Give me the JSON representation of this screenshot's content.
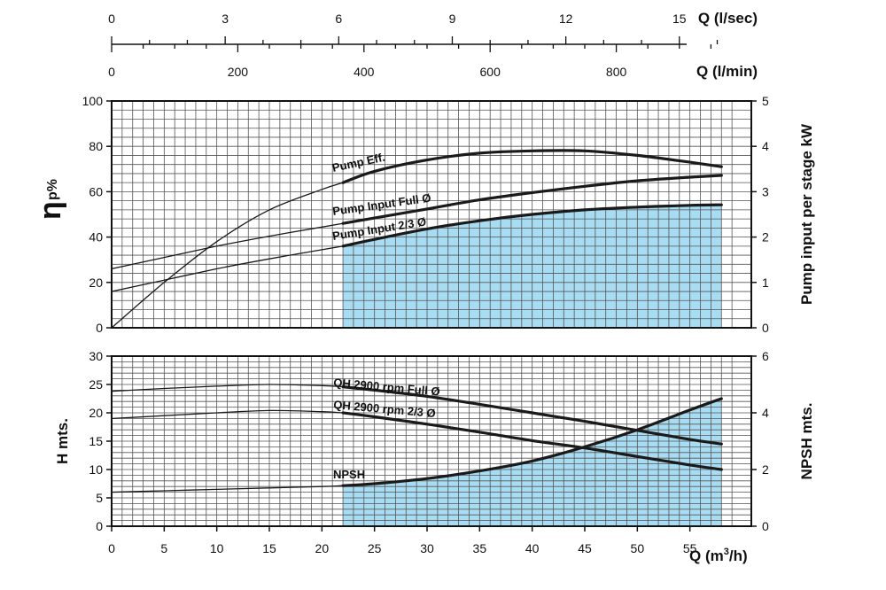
{
  "colors": {
    "fill": "#a8dcf2",
    "grid": "#555555",
    "curve": "#1a1a1a",
    "frame": "#111111"
  },
  "chart_data": [
    {
      "type": "line",
      "panel": "efficiency-and-power",
      "x": [
        0,
        5,
        10,
        15,
        20,
        22,
        25,
        30,
        35,
        40,
        45,
        50,
        55,
        58
      ],
      "xlim": [
        0,
        60
      ],
      "ylim": [
        0,
        100
      ],
      "ylabel": "η",
      "ylabel_sub": "p%",
      "yticks": [
        0,
        20,
        40,
        60,
        80,
        100
      ],
      "y2lim": [
        0,
        5
      ],
      "y2label": "Pump input per stage kW",
      "y2ticks": [
        0,
        1,
        2,
        3,
        4,
        5
      ],
      "grid": true,
      "fill_from_x": 22,
      "series": [
        {
          "name": "Pump Eff.",
          "axis": "left",
          "values": [
            0,
            20,
            38,
            52,
            61,
            64,
            69,
            74,
            77,
            78,
            78,
            76,
            73,
            71
          ]
        },
        {
          "name": "Pump Input Full Ø",
          "axis": "right",
          "values": [
            1.3,
            1.55,
            1.8,
            2.02,
            2.22,
            2.3,
            2.42,
            2.62,
            2.82,
            2.98,
            3.12,
            3.24,
            3.32,
            3.36
          ]
        },
        {
          "name": "Pump Input 2/3 Ø",
          "axis": "right",
          "filled": true,
          "values": [
            0.8,
            1.05,
            1.3,
            1.52,
            1.72,
            1.8,
            1.95,
            2.18,
            2.36,
            2.5,
            2.6,
            2.66,
            2.7,
            2.71
          ]
        }
      ]
    },
    {
      "type": "line",
      "panel": "head-and-npsh",
      "x": [
        0,
        5,
        10,
        15,
        20,
        22,
        25,
        30,
        35,
        40,
        45,
        50,
        55,
        58
      ],
      "xlim": [
        0,
        60
      ],
      "xlabel": "Q (m",
      "xlabel_sup": "3",
      "xlabel_end": "/h)",
      "xticks": [
        0,
        5,
        10,
        15,
        20,
        25,
        30,
        35,
        40,
        45,
        50,
        55
      ],
      "ylim": [
        0,
        30
      ],
      "ylabel": "H mts.",
      "yticks": [
        0,
        5,
        10,
        15,
        20,
        25,
        30
      ],
      "y2lim": [
        0,
        6
      ],
      "y2label": "NPSH mts.",
      "y2ticks": [
        0,
        2,
        4,
        6
      ],
      "grid": true,
      "fill_from_x": 22,
      "series": [
        {
          "name": "QH 2900 rpm Full Ø",
          "axis": "left",
          "values": [
            23.8,
            24.3,
            24.7,
            25.0,
            24.8,
            24.6,
            24.0,
            22.9,
            21.5,
            20.0,
            18.5,
            16.9,
            15.3,
            14.5
          ]
        },
        {
          "name": "QH 2900 rpm 2/3 Ø",
          "axis": "left",
          "values": [
            19.0,
            19.5,
            20.0,
            20.4,
            20.2,
            20.0,
            19.3,
            18.0,
            16.6,
            15.1,
            13.8,
            12.3,
            10.8,
            10.0
          ]
        },
        {
          "name": "NPSH",
          "axis": "right",
          "filled": true,
          "values": [
            1.2,
            1.25,
            1.3,
            1.35,
            1.4,
            1.43,
            1.5,
            1.68,
            1.95,
            2.3,
            2.8,
            3.4,
            4.1,
            4.5
          ]
        }
      ]
    }
  ],
  "top_axes": [
    {
      "label": "Q (l/sec)",
      "ticks": [
        0,
        3,
        6,
        9,
        12,
        15
      ],
      "max": 16.667
    },
    {
      "label": "Q (l/min)",
      "ticks": [
        0,
        200,
        400,
        600,
        800
      ],
      "max": 1000
    }
  ]
}
